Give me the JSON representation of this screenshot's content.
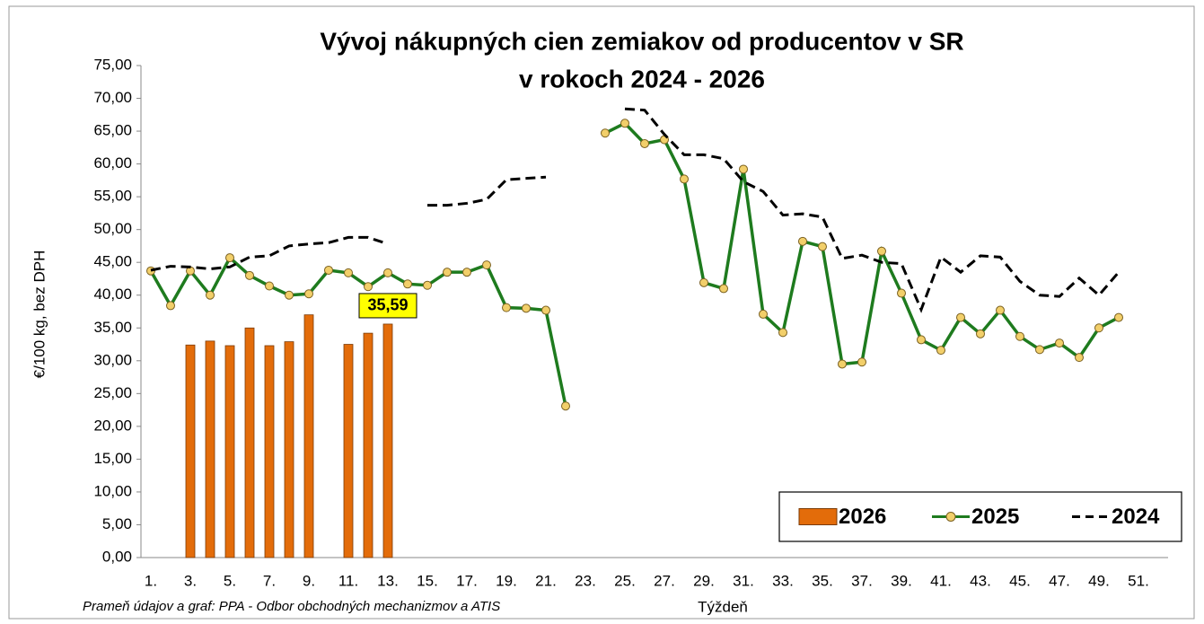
{
  "chart_data": {
    "type": "bar_line",
    "title": "Vývoj nákupných cien zemiakov od producentov v SR",
    "subtitle": "v rokoch 2024 - 2026",
    "y_label": "€/100 kg, bez DPH",
    "x_label": "Týždeň",
    "source": "Prameň údajov a graf: PPA - Odbor obchodných mechanizmov a ATIS",
    "categories": [
      "1.",
      null,
      "3.",
      null,
      "5.",
      null,
      "7.",
      null,
      "9.",
      null,
      "11.",
      null,
      "13.",
      null,
      "15.",
      null,
      "17.",
      null,
      "19.",
      null,
      "21.",
      null,
      "23.",
      null,
      "25.",
      null,
      "27.",
      null,
      "29.",
      null,
      "31.",
      null,
      "33.",
      null,
      "35.",
      null,
      "37.",
      null,
      "39.",
      null,
      "41.",
      null,
      "43.",
      null,
      "45.",
      null,
      "47.",
      null,
      "49.",
      null,
      "51.",
      null
    ],
    "ylim": [
      0,
      75
    ],
    "yticks": [
      {
        "value": 0,
        "label": "0,00"
      },
      {
        "value": 5,
        "label": "5,00"
      },
      {
        "value": 10,
        "label": "10,00"
      },
      {
        "value": 15,
        "label": "15,00"
      },
      {
        "value": 20,
        "label": "20,00"
      },
      {
        "value": 25,
        "label": "25,00"
      },
      {
        "value": 30,
        "label": "30,00"
      },
      {
        "value": 35,
        "label": "35,00"
      },
      {
        "value": 40,
        "label": "40,00"
      },
      {
        "value": 45,
        "label": "45,00"
      },
      {
        "value": 50,
        "label": "50,00"
      },
      {
        "value": 55,
        "label": "55,00"
      },
      {
        "value": 60,
        "label": "60,00"
      },
      {
        "value": 65,
        "label": "65,00"
      },
      {
        "value": 70,
        "label": "70,00"
      },
      {
        "value": 75,
        "label": "75,00"
      }
    ],
    "legend_position": "bottom-right",
    "series": [
      {
        "name": "2026",
        "type": "bar",
        "color": "#e36c0a",
        "values": [
          null,
          null,
          32.4,
          33.0,
          32.3,
          35.0,
          32.3,
          32.9,
          37.0,
          null,
          32.5,
          34.2,
          35.59,
          null,
          null,
          null,
          null,
          null,
          null,
          null,
          null,
          null,
          null,
          null,
          null,
          null,
          null,
          null,
          null,
          null,
          null,
          null,
          null,
          null,
          null,
          null,
          null,
          null,
          null,
          null,
          null,
          null,
          null,
          null,
          null,
          null,
          null,
          null,
          null,
          null,
          null,
          null
        ],
        "value_labels": [
          null,
          null,
          null,
          null,
          null,
          null,
          null,
          null,
          null,
          null,
          null,
          null,
          "35,59",
          null,
          null,
          null,
          null,
          null,
          null,
          null,
          null,
          null,
          null,
          null,
          null,
          null,
          null,
          null,
          null,
          null,
          null,
          null,
          null,
          null,
          null,
          null,
          null,
          null,
          null,
          null,
          null,
          null,
          null,
          null,
          null,
          null,
          null,
          null,
          null,
          null,
          null,
          null
        ]
      },
      {
        "name": "2025",
        "type": "line",
        "color": "#1e7b1e",
        "marker_color": "#f2cf6a",
        "values": [
          43.7,
          38.4,
          43.7,
          40.0,
          45.7,
          43.0,
          41.4,
          40.0,
          40.2,
          43.8,
          43.4,
          41.3,
          43.4,
          41.7,
          41.5,
          43.5,
          43.5,
          44.6,
          38.1,
          38.0,
          37.7,
          23.1,
          null,
          64.7,
          66.2,
          63.1,
          63.7,
          57.7,
          41.9,
          41.0,
          59.2,
          37.1,
          34.3,
          48.2,
          47.4,
          29.5,
          29.8,
          46.7,
          40.3,
          33.2,
          31.6,
          36.6,
          34.1,
          37.7,
          33.7,
          31.7,
          32.7,
          30.5,
          35.0,
          36.6,
          null,
          null
        ]
      },
      {
        "name": "2024",
        "type": "dashed",
        "color": "#000000",
        "values": [
          43.8,
          44.4,
          44.3,
          44.0,
          44.3,
          45.8,
          46.0,
          47.5,
          47.8,
          48.0,
          48.8,
          48.8,
          47.8,
          null,
          53.7,
          53.7,
          54.0,
          54.6,
          57.6,
          57.8,
          58.0,
          null,
          null,
          null,
          68.4,
          68.2,
          64.5,
          61.4,
          61.4,
          60.8,
          57.3,
          55.8,
          52.2,
          52.4,
          51.9,
          45.6,
          46.1,
          45.0,
          44.8,
          37.8,
          45.8,
          43.5,
          46.0,
          45.8,
          42.1,
          40.0,
          39.8,
          42.6,
          40.0,
          43.5,
          null,
          null
        ]
      }
    ]
  }
}
